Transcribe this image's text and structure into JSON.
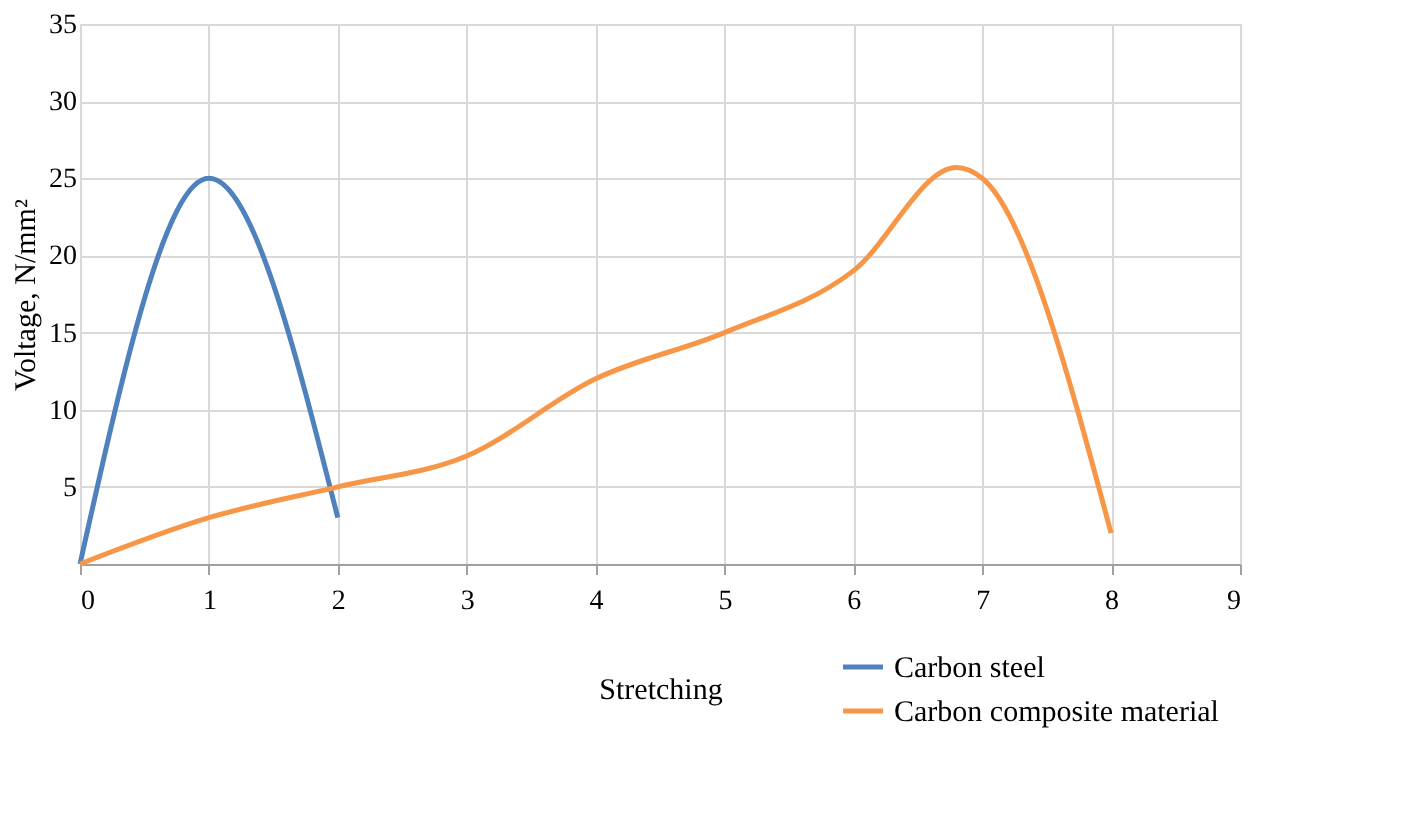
{
  "chart_data": {
    "type": "line",
    "xlabel": "Stretching",
    "ylabel": "Voltage, N/mm²",
    "xlim": [
      0,
      9
    ],
    "xticks": [
      0,
      1,
      2,
      3,
      4,
      5,
      6,
      7,
      8,
      9
    ],
    "ylim": [
      0,
      35
    ],
    "yticks": [
      5,
      10,
      15,
      20,
      25,
      30,
      35
    ],
    "grid": true,
    "legend": "bottom right",
    "marker": "none",
    "line_style": "solid",
    "series": [
      {
        "name": "Carbon steel",
        "color": "#4f81bd",
        "x": [
          0,
          1,
          2
        ],
        "values": [
          0,
          25,
          3
        ]
      },
      {
        "name": "Carbon composite material",
        "color": "#f79646",
        "x": [
          0,
          1,
          2,
          3,
          4,
          5,
          6,
          6.8,
          7,
          8
        ],
        "values": [
          0,
          3,
          5,
          7,
          12,
          15,
          19,
          25.7,
          25,
          2
        ]
      }
    ]
  }
}
